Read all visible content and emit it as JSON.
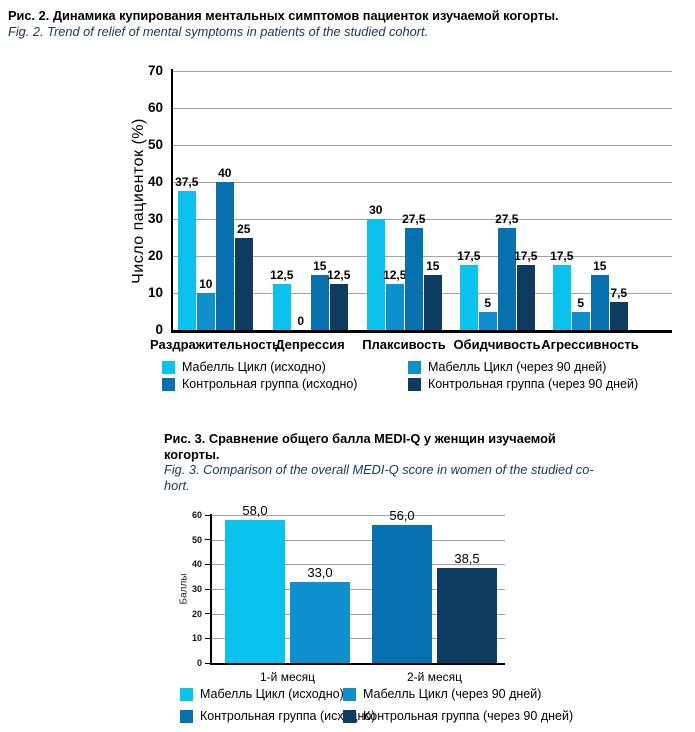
{
  "figure2": {
    "caption_ru": "Рис. 2. Динамика купирования ментальных симптомов пациенток изучаемой когорты.",
    "caption_en": "Fig. 2. Trend of relief of mental symptoms in patients of the studied cohort."
  },
  "figure3": {
    "caption_ru_lines": [
      "Рис. 3. Сравнение общего балла MEDI-Q у женщин изучаемой",
      "когорты."
    ],
    "caption_en_lines": [
      "Fig. 3. Comparison of the overall MEDI-Q score in women of the studied co-",
      "hort."
    ]
  },
  "colors": {
    "series1": "#0AC2EE",
    "series2": "#0E8FCE",
    "series3": "#0571AE",
    "series4": "#0D3C60",
    "grid": "#A3A3A3",
    "axis": "#000000",
    "caption_en_text": "#16375D"
  },
  "chart_data": [
    {
      "type": "bar",
      "title": "Рис. 2. Динамика купирования ментальных симптомов пациенток изучаемой когорты.",
      "xlabel": "",
      "ylabel": "Число пациенток (%)",
      "ylim": [
        0,
        70
      ],
      "ytick_step": 10,
      "yticks": [
        "0",
        "10",
        "20",
        "30",
        "40",
        "50",
        "60",
        "70"
      ],
      "grid": true,
      "legend_position": "bottom",
      "categories": [
        "Раздражительность",
        "Депрессия",
        "Плаксивость",
        "Обидчивость",
        "Агрессивность"
      ],
      "series": [
        {
          "name": "Мабелль Цикл (исходно)",
          "color": "#0AC2EE",
          "values": [
            37.5,
            12.5,
            30,
            17.5,
            17.5
          ],
          "labels": [
            "37,5",
            "12,5",
            "30",
            "17,5",
            "17,5"
          ]
        },
        {
          "name": "Мабелль Цикл (через 90 дней)",
          "color": "#0E8FCE",
          "values": [
            10,
            0,
            12.5,
            5,
            5
          ],
          "labels": [
            "10",
            "0",
            "12,5",
            "5",
            "5"
          ]
        },
        {
          "name": "Контрольная группа (исходно)",
          "color": "#0571AE",
          "values": [
            40,
            15,
            27.5,
            27.5,
            15
          ],
          "labels": [
            "40",
            "15",
            "27,5",
            "27,5",
            "15"
          ]
        },
        {
          "name": "Контрольная группа (через 90 дней)",
          "color": "#0D3C60",
          "values": [
            25,
            12.5,
            15,
            17.5,
            7.5
          ],
          "labels": [
            "25",
            "12,5",
            "15",
            "17,5",
            "7,5"
          ]
        }
      ]
    },
    {
      "type": "bar",
      "title": "Рис. 3. Сравнение общего балла MEDI-Q у женщин изучаемой когорты.",
      "xlabel": "",
      "ylabel": "Баллы",
      "ylim": [
        0,
        60
      ],
      "ytick_step": 10,
      "yticks": [
        "0",
        "10",
        "20",
        "30",
        "40",
        "50",
        "60"
      ],
      "grid": true,
      "legend_position": "bottom",
      "categories": [
        "1-й месяц",
        "2-й месяц"
      ],
      "bars": [
        {
          "category": "1-й месяц",
          "series": "Мабелль Цикл (исходно)",
          "color": "#0AC2EE",
          "value": 58.0,
          "label": "58,0"
        },
        {
          "category": "1-й месяц",
          "series": "Мабелль Цикл (через 90 дней)",
          "color": "#0E8FCE",
          "value": 33.0,
          "label": "33,0"
        },
        {
          "category": "2-й месяц",
          "series": "Контрольная группа (исходно)",
          "color": "#0571AE",
          "value": 56.0,
          "label": "56,0"
        },
        {
          "category": "2-й месяц",
          "series": "Контрольная группа (через 90 дней)",
          "color": "#0D3C60",
          "value": 38.5,
          "label": "38,5"
        }
      ],
      "legend": [
        "Мабелль Цикл (исходно)",
        "Мабелль Цикл (через 90 дней)",
        "Контрольная группа (исходно)",
        "Контрольная группа (через 90 дней)"
      ]
    }
  ]
}
